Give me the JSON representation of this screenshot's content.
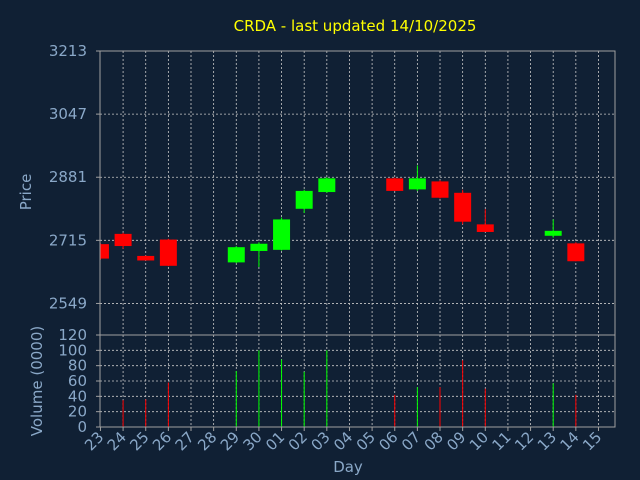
{
  "chart_data": {
    "type": "candlestick",
    "title": "CRDA - last updated 14/10/2025",
    "xlabel": "Day",
    "price_panel": {
      "ylabel": "Price",
      "ylim": [
        2466,
        3213
      ],
      "yticks": [
        "3213",
        "3047",
        "2881",
        "2715",
        "2549"
      ],
      "grid": true
    },
    "volume_panel": {
      "ylabel": "Volume (0000)",
      "ylim": [
        0,
        120
      ],
      "yticks": [
        "120",
        "100",
        "80",
        "60",
        "40",
        "20",
        "0"
      ],
      "grid": true
    },
    "categories": [
      "23",
      "24",
      "25",
      "26",
      "27",
      "28",
      "29",
      "30",
      "01",
      "02",
      "03",
      "04",
      "05",
      "06",
      "07",
      "08",
      "09",
      "10",
      "11",
      "12",
      "13",
      "14",
      "15"
    ],
    "candles": [
      {
        "day": "23",
        "open": 2705,
        "high": 2707,
        "low": 2664,
        "close": 2667,
        "volume": null
      },
      {
        "day": "24",
        "open": 2732,
        "high": 2735,
        "low": 2693,
        "close": 2700,
        "volume": 35
      },
      {
        "day": "25",
        "open": 2674,
        "high": 2675,
        "low": 2662,
        "close": 2662,
        "volume": 36
      },
      {
        "day": "26",
        "open": 2717,
        "high": 2719,
        "low": 2647,
        "close": 2648,
        "volume": 58
      },
      {
        "day": "27",
        "open": null,
        "high": null,
        "low": null,
        "close": null,
        "volume": null
      },
      {
        "day": "28",
        "open": null,
        "high": null,
        "low": null,
        "close": null,
        "volume": null
      },
      {
        "day": "29",
        "open": 2657,
        "high": 2700,
        "low": 2655,
        "close": 2697,
        "volume": 73
      },
      {
        "day": "30",
        "open": 2687,
        "high": 2710,
        "low": 2645,
        "close": 2706,
        "volume": 100
      },
      {
        "day": "01",
        "open": 2690,
        "high": 2775,
        "low": 2688,
        "close": 2770,
        "volume": 88
      },
      {
        "day": "02",
        "open": 2798,
        "high": 2848,
        "low": 2787,
        "close": 2845,
        "volume": 72
      },
      {
        "day": "03",
        "open": 2842,
        "high": 2881,
        "low": 2840,
        "close": 2878,
        "volume": 100
      },
      {
        "day": "04",
        "open": null,
        "high": null,
        "low": null,
        "close": null,
        "volume": null
      },
      {
        "day": "05",
        "open": null,
        "high": null,
        "low": null,
        "close": null,
        "volume": null
      },
      {
        "day": "06",
        "open": 2878,
        "high": 2880,
        "low": 2845,
        "close": 2845,
        "volume": 42
      },
      {
        "day": "07",
        "open": 2849,
        "high": 2912,
        "low": 2845,
        "close": 2878,
        "volume": 52
      },
      {
        "day": "08",
        "open": 2870,
        "high": 2873,
        "low": 2825,
        "close": 2827,
        "volume": 52
      },
      {
        "day": "09",
        "open": 2840,
        "high": 2848,
        "low": 2757,
        "close": 2764,
        "volume": 87
      },
      {
        "day": "10",
        "open": 2757,
        "high": 2797,
        "low": 2737,
        "close": 2737,
        "volume": 50
      },
      {
        "day": "11",
        "open": null,
        "high": null,
        "low": null,
        "close": null,
        "volume": null
      },
      {
        "day": "12",
        "open": null,
        "high": null,
        "low": null,
        "close": null,
        "volume": null
      },
      {
        "day": "13",
        "open": 2727,
        "high": 2770,
        "low": 2722,
        "close": 2740,
        "volume": 57
      },
      {
        "day": "14",
        "open": 2707,
        "high": 2710,
        "low": 2660,
        "close": 2660,
        "volume": 42
      },
      {
        "day": "15",
        "open": null,
        "high": null,
        "low": null,
        "close": null,
        "volume": null
      }
    ],
    "colors": {
      "background": "#102034",
      "plot_background": "#102034",
      "grid": "#c8c8c8",
      "axes": "#a0a0a0",
      "up": "#00ff00",
      "down": "#ff0000",
      "title": "#ffff00",
      "axis_text": "#8aa8c8"
    }
  }
}
